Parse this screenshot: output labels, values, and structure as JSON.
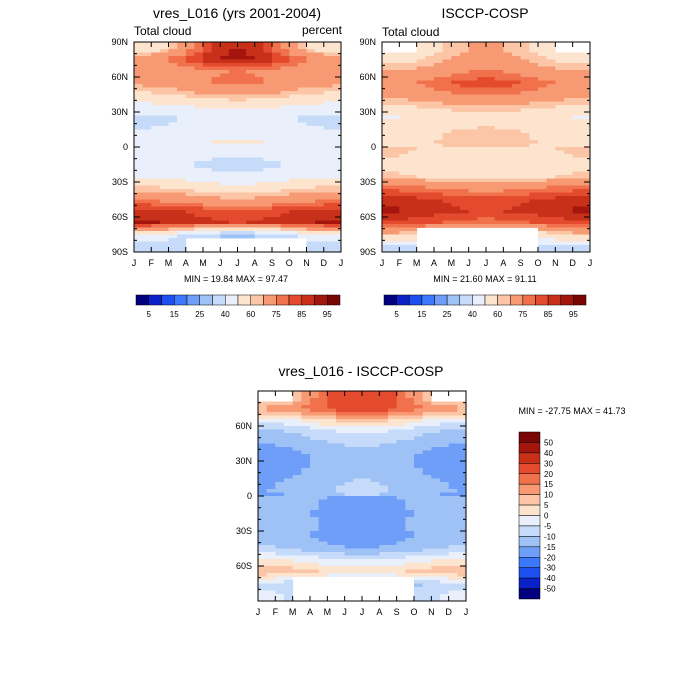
{
  "chart_data": [
    {
      "type": "heatmap",
      "title": "vres_L016 (yrs 2001-2004)",
      "left_label": "Total cloud",
      "right_label": "percent",
      "x_tick_labels": [
        "J",
        "F",
        "M",
        "A",
        "M",
        "J",
        "J",
        "A",
        "S",
        "O",
        "N",
        "D",
        "J"
      ],
      "y_tick_labels": [
        "90N",
        "60N",
        "30N",
        "0",
        "30S",
        "60S",
        "90S"
      ],
      "y_tick_values": [
        90,
        60,
        30,
        0,
        -30,
        -60,
        -90
      ],
      "ylim": [
        -90,
        90
      ],
      "stats": "MIN =  19.84 MAX =  97.47",
      "min": 19.84,
      "max": 97.47,
      "missing_south_of": -78,
      "missing_months_south": [
        3,
        4,
        5,
        6,
        7,
        8,
        9
      ],
      "missing_months_north": [],
      "latitudes": [
        85,
        75,
        65,
        55,
        45,
        35,
        25,
        15,
        5,
        -5,
        -15,
        -25,
        -35,
        -45,
        -55,
        -65,
        -75,
        -85
      ],
      "months": [
        "Jan",
        "Feb",
        "Mar",
        "Apr",
        "May",
        "Jun",
        "Jul",
        "Aug",
        "Sep",
        "Oct",
        "Nov",
        "Dec",
        "Jan"
      ],
      "zonal_mean_by_lat": [
        70,
        82,
        70,
        72,
        62,
        50,
        40,
        43,
        48,
        45,
        40,
        45,
        58,
        70,
        85,
        88,
        40,
        30
      ],
      "seasonal_amplitude_by_lat": [
        20,
        10,
        5,
        5,
        4,
        3,
        3,
        3,
        3,
        3,
        3,
        4,
        4,
        4,
        3,
        3,
        10,
        5
      ]
    },
    {
      "type": "heatmap",
      "title": "ISCCP-COSP",
      "left_label": "Total cloud",
      "right_label": "",
      "x_tick_labels": [
        "J",
        "F",
        "M",
        "A",
        "M",
        "J",
        "J",
        "A",
        "S",
        "O",
        "N",
        "D",
        "J"
      ],
      "y_tick_labels": [
        "90N",
        "60N",
        "30N",
        "0",
        "30S",
        "60S",
        "90S"
      ],
      "y_tick_values": [
        90,
        60,
        30,
        0,
        -30,
        -60,
        -90
      ],
      "ylim": [
        -90,
        90
      ],
      "stats": "MIN =  21.60 MAX =  91.11",
      "min": 21.6,
      "max": 91.11,
      "missing_south_of": -70,
      "missing_months_south": [
        2,
        3,
        4,
        5,
        6,
        7,
        8
      ],
      "missing_months_north": [
        0,
        1,
        10,
        11
      ],
      "latitudes": [
        85,
        75,
        65,
        55,
        45,
        35,
        25,
        15,
        5,
        -5,
        -15,
        -25,
        -35,
        -45,
        -55,
        -65,
        -75,
        -85
      ],
      "months": [
        "Jan",
        "Feb",
        "Mar",
        "Apr",
        "May",
        "Jun",
        "Jul",
        "Aug",
        "Sep",
        "Oct",
        "Nov",
        "Dec",
        "Jan"
      ],
      "zonal_mean_by_lat": [
        58,
        62,
        70,
        78,
        72,
        62,
        52,
        58,
        60,
        58,
        55,
        58,
        75,
        85,
        88,
        80,
        55,
        35
      ],
      "seasonal_amplitude_by_lat": [
        8,
        6,
        5,
        5,
        4,
        3,
        3,
        3,
        3,
        3,
        3,
        3,
        3,
        3,
        3,
        3,
        8,
        5
      ]
    },
    {
      "type": "heatmap",
      "title": "vres_L016 - ISCCP-COSP",
      "x_tick_labels": [
        "J",
        "F",
        "M",
        "A",
        "M",
        "J",
        "J",
        "A",
        "S",
        "O",
        "N",
        "D",
        "J"
      ],
      "y_tick_labels": [
        "60N",
        "30N",
        "0",
        "30S",
        "60S"
      ],
      "y_tick_values": [
        60,
        30,
        0,
        -30,
        -60
      ],
      "ylim": [
        -90,
        90
      ],
      "stats": "MIN = -27.75 MAX =  41.73",
      "min": -27.75,
      "max": 41.73,
      "missing_south_of": -70,
      "missing_months_south": [
        2,
        3,
        4,
        5,
        6,
        7,
        8
      ],
      "missing_months_north": [
        0,
        1,
        10,
        11
      ],
      "latitudes": [
        85,
        75,
        65,
        55,
        45,
        35,
        25,
        15,
        5,
        -5,
        -15,
        -25,
        -35,
        -45,
        -55,
        -65,
        -75,
        -85
      ],
      "months": [
        "Jan",
        "Feb",
        "Mar",
        "Apr",
        "May",
        "Jun",
        "Jul",
        "Aug",
        "Sep",
        "Oct",
        "Nov",
        "Dec",
        "Jan"
      ],
      "zonal_mean_by_lat": [
        12,
        18,
        2,
        -8,
        -12,
        -15,
        -15,
        -13,
        -12,
        -14,
        -15,
        -14,
        -15,
        -12,
        -2,
        6,
        -12,
        -8
      ],
      "seasonal_amplitude_by_lat": [
        15,
        6,
        5,
        4,
        3,
        3,
        3,
        3,
        3,
        3,
        3,
        3,
        3,
        3,
        3,
        3,
        6,
        4
      ]
    }
  ],
  "colorbars": {
    "total_cloud": {
      "orientation": "horizontal",
      "levels": [
        5,
        10,
        15,
        20,
        25,
        30,
        40,
        50,
        60,
        65,
        75,
        80,
        85,
        90,
        95
      ],
      "labels": [
        "5",
        "15",
        "25",
        "40",
        "60",
        "75",
        "85",
        "95"
      ],
      "colors": [
        "#02007f",
        "#0a20c8",
        "#1e4fef",
        "#3c78fb",
        "#6e9ef8",
        "#9ec1f6",
        "#c6dbf9",
        "#eaf0fb",
        "#fde4cf",
        "#fbc5a6",
        "#f79a74",
        "#f1714d",
        "#e34a2e",
        "#c9301a",
        "#a4160d",
        "#790605"
      ]
    },
    "difference": {
      "orientation": "vertical",
      "levels": [
        50,
        40,
        30,
        20,
        15,
        10,
        5,
        0,
        -5,
        -10,
        -15,
        -20,
        -30,
        -40,
        -50
      ],
      "labels": [
        "50",
        "40",
        "30",
        "20",
        "15",
        "10",
        "5",
        "0",
        "-5",
        "-10",
        "-15",
        "-20",
        "-30",
        "-40",
        "-50"
      ],
      "colors": [
        "#790605",
        "#a4160d",
        "#c9301a",
        "#e34a2e",
        "#f1714d",
        "#f79a74",
        "#fbc5a6",
        "#fde4cf",
        "#eaf0fb",
        "#c6dbf9",
        "#9ec1f6",
        "#6e9ef8",
        "#3c78fb",
        "#1e4fef",
        "#0a20c8",
        "#02007f"
      ]
    }
  }
}
